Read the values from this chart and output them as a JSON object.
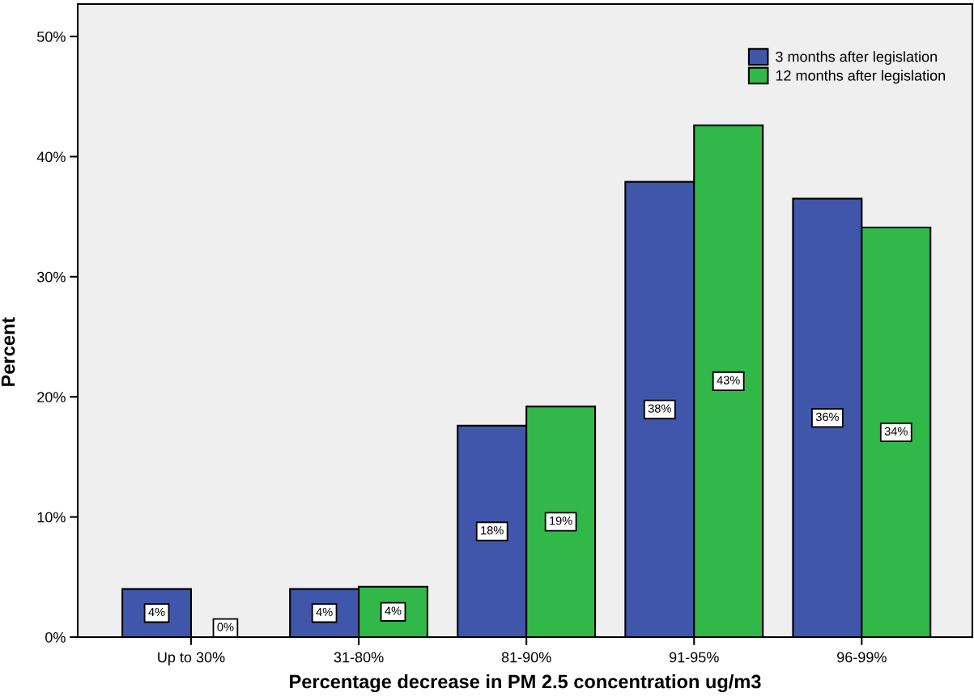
{
  "chart_data": {
    "type": "bar",
    "xlabel": "Percentage decrease in PM 2.5 concentration ug/m3",
    "ylabel": "Percent",
    "categories": [
      "Up to 30%",
      "31-80%",
      "81-90%",
      "91-95%",
      "96-99%"
    ],
    "series": [
      {
        "name": "3 months after legislation",
        "color": "#3f56aa",
        "values": [
          4.0,
          4.0,
          17.6,
          37.9,
          36.5
        ],
        "value_labels": [
          "4%",
          "4%",
          "18%",
          "38%",
          "36%"
        ]
      },
      {
        "name": "12 months after legislation",
        "color": "#31b848",
        "values": [
          0,
          4.2,
          19.2,
          42.6,
          34.1
        ],
        "value_labels": [
          "0%",
          "4%",
          "19%",
          "43%",
          "34%"
        ]
      }
    ],
    "ylim": [
      0,
      52.7
    ],
    "yticks": [
      {
        "value": 0,
        "label": "0%"
      },
      {
        "value": 10,
        "label": "10%"
      },
      {
        "value": 20,
        "label": "20%"
      },
      {
        "value": 30,
        "label": "30%"
      },
      {
        "value": 40,
        "label": "40%"
      },
      {
        "value": 50,
        "label": "50%"
      }
    ],
    "grid": false,
    "legend": "top right"
  }
}
